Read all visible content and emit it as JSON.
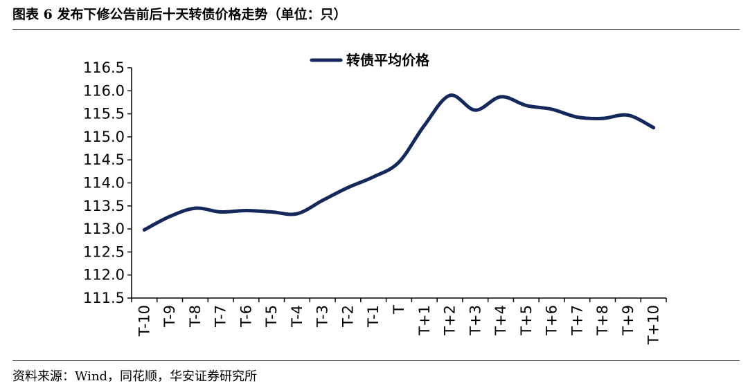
{
  "header": {
    "title": "图表 6   发布下修公告前后十天转债价格走势（单位：只）"
  },
  "footer": {
    "source": "资料来源：Wind，同花顺，华安证券研究所"
  },
  "chart_data": {
    "type": "line",
    "title": "图表 6   发布下修公告前后十天转债价格走势（单位：只）",
    "xlabel": "",
    "ylabel": "",
    "categories": [
      "T-10",
      "T-9",
      "T-8",
      "T-7",
      "T-6",
      "T-5",
      "T-4",
      "T-3",
      "T-2",
      "T-1",
      "T",
      "T+1",
      "T+2",
      "T+3",
      "T+4",
      "T+5",
      "T+6",
      "T+7",
      "T+8",
      "T+9",
      "T+10"
    ],
    "series": [
      {
        "name": "转债平均价格",
        "color": "#14285c",
        "values": [
          112.98,
          113.27,
          113.45,
          113.37,
          113.4,
          113.37,
          113.33,
          113.62,
          113.9,
          114.13,
          114.45,
          115.25,
          115.9,
          115.58,
          115.87,
          115.68,
          115.6,
          115.43,
          115.4,
          115.47,
          115.2
        ]
      }
    ],
    "ylim": [
      111.5,
      116.5
    ],
    "yticks": [
      "111.5",
      "112.0",
      "112.5",
      "113.0",
      "113.5",
      "114.0",
      "114.5",
      "115.0",
      "115.5",
      "116.0",
      "116.5"
    ],
    "legend": "top-center",
    "grid": false
  }
}
